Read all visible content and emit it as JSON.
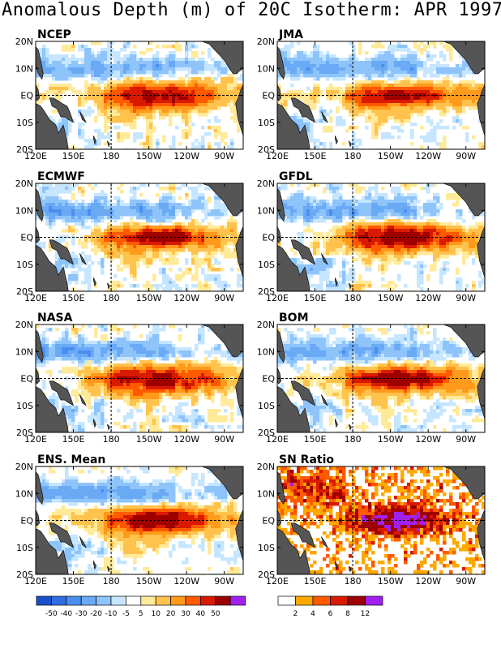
{
  "title": "Anomalous Depth (m) of 20C Isotherm: APR 1997",
  "chart_data": {
    "type": "heatmap",
    "title": "Anomalous Depth (m) of 20C Isotherm: APR 1997",
    "x_ticks": [
      "120E",
      "150E",
      "180",
      "150W",
      "120W",
      "90W"
    ],
    "y_ticks": [
      "20N",
      "10N",
      "EQ",
      "10S",
      "20S"
    ],
    "panels": [
      {
        "name": "NCEP",
        "scale": "depth",
        "peak": 45,
        "width": 1.0,
        "noise": 0.6
      },
      {
        "name": "JMA",
        "scale": "depth",
        "peak": 44,
        "width": 0.9,
        "noise": 0.5
      },
      {
        "name": "ECMWF",
        "scale": "depth",
        "peak": 52,
        "width": 0.85,
        "noise": 0.6
      },
      {
        "name": "GFDL",
        "scale": "depth",
        "peak": 46,
        "width": 1.05,
        "noise": 0.55
      },
      {
        "name": "NASA",
        "scale": "depth",
        "peak": 44,
        "width": 1.1,
        "noise": 0.6
      },
      {
        "name": "BOM",
        "scale": "depth",
        "peak": 51,
        "width": 0.9,
        "noise": 0.55
      },
      {
        "name": "ENS. Mean",
        "scale": "depth",
        "peak": 50,
        "width": 1.0,
        "noise": 0.45
      },
      {
        "name": "SN Ratio",
        "scale": "snr",
        "peak": 14,
        "width": 0.9,
        "noise": 1.0
      }
    ],
    "depth_colorbar": {
      "levels": [
        "-50",
        "-40",
        "-30",
        "-20",
        "-10",
        "-5",
        "5",
        "10",
        "20",
        "30",
        "40",
        "50"
      ],
      "colors": [
        "#1a4fcc",
        "#2f6ee0",
        "#4a8ff0",
        "#6aaaf5",
        "#8ec4fa",
        "#c6e6ff",
        "#ffffff",
        "#ffea99",
        "#ffc24d",
        "#ff9a1a",
        "#ff5a00",
        "#d91a00",
        "#9e0000",
        "#a020f0"
      ]
    },
    "snr_colorbar": {
      "levels": [
        "2",
        "4",
        "6",
        "8",
        "12"
      ],
      "colors": [
        "#ffffff",
        "#ffa800",
        "#ff5a00",
        "#d91a00",
        "#9e0000",
        "#a020f0"
      ]
    },
    "land_color": "#555555"
  }
}
